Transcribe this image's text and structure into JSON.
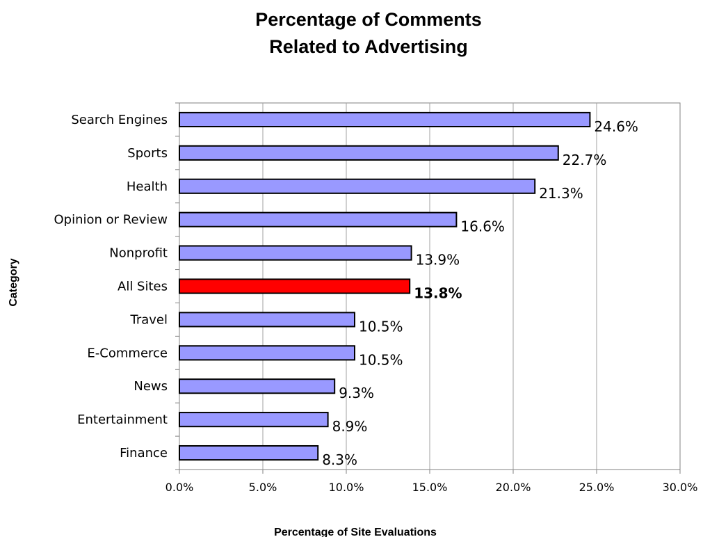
{
  "chart_data": {
    "type": "bar",
    "orientation": "horizontal",
    "title_lines": [
      "Percentage of Comments",
      "Related to Advertising"
    ],
    "xlabel": "Percentage of Site Evaluations",
    "ylabel": "Category",
    "xlim": [
      0,
      30
    ],
    "x_ticks": [
      "0.0%",
      "5.0%",
      "10.0%",
      "15.0%",
      "20.0%",
      "25.0%",
      "30.0%"
    ],
    "grid": "vertical",
    "legend": "none",
    "categories": [
      "Search Engines",
      "Sports",
      "Health",
      "Opinion or Review",
      "Nonprofit",
      "All Sites",
      "Travel",
      "E-Commerce",
      "News",
      "Entertainment",
      "Finance"
    ],
    "values": [
      24.6,
      22.7,
      21.3,
      16.6,
      13.9,
      13.8,
      10.5,
      10.5,
      9.3,
      8.9,
      8.3
    ],
    "value_labels": [
      "24.6%",
      "22.7%",
      "21.3%",
      "16.6%",
      "13.9%",
      "13.8%",
      "10.5%",
      "10.5%",
      "9.3%",
      "8.9%",
      "8.3%"
    ],
    "highlight_category": "All Sites",
    "colors": {
      "bar": "#9999ff",
      "highlight": "#ff0000"
    }
  }
}
